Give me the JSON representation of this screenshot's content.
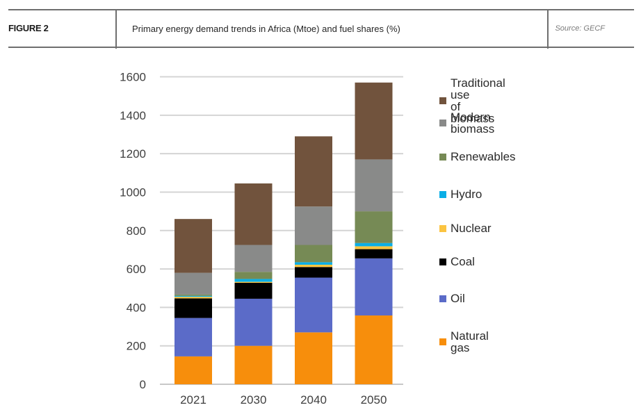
{
  "header": {
    "figure_label": "FIGURE 2",
    "title": "Primary energy demand trends in Africa (Mtoe) and fuel shares (%)",
    "source": "Source: GECF"
  },
  "chart_data": {
    "type": "bar",
    "stacked": true,
    "title": "Primary energy demand trends in Africa (Mtoe) and fuel shares (%)",
    "xlabel": "",
    "ylabel": "",
    "categories": [
      "2021",
      "2030",
      "2040",
      "2050"
    ],
    "ylim": [
      0,
      1600
    ],
    "yticks": [
      0,
      200,
      400,
      600,
      800,
      1000,
      1200,
      1400,
      1600
    ],
    "grid": true,
    "legend_position": "right",
    "series": [
      {
        "name": "Natural gas",
        "color": "#f78e0c",
        "values": [
          145,
          200,
          270,
          358
        ]
      },
      {
        "name": "Oil",
        "color": "#5b6bc8",
        "values": [
          200,
          245,
          285,
          297
        ]
      },
      {
        "name": "Coal",
        "color": "#000000",
        "values": [
          102,
          83,
          55,
          48
        ]
      },
      {
        "name": "Nuclear",
        "color": "#fbc441",
        "values": [
          8,
          5,
          12,
          15
        ]
      },
      {
        "name": "Hydro",
        "color": "#0aaee6",
        "values": [
          5,
          15,
          13,
          17
        ]
      },
      {
        "name": "Renewables",
        "color": "#768a55",
        "values": [
          7,
          37,
          90,
          165
        ]
      },
      {
        "name": "Modern biomass",
        "color": "#898a89",
        "values": [
          113,
          140,
          200,
          270
        ]
      },
      {
        "name": "Traditional use of biomass",
        "color": "#71533d",
        "values": [
          280,
          320,
          365,
          400
        ]
      }
    ]
  },
  "legend": [
    {
      "label": "Traditional use\nof biomass",
      "color": "#71533d"
    },
    {
      "label": "Modern\nbiomass",
      "color": "#898a89"
    },
    {
      "label": "Renewables",
      "color": "#768a55"
    },
    {
      "label": "Hydro",
      "color": "#0aaee6"
    },
    {
      "label": "Nuclear",
      "color": "#fbc441"
    },
    {
      "label": "Coal",
      "color": "#000000"
    },
    {
      "label": "Oil",
      "color": "#5b6bc8"
    },
    {
      "label": "Natural gas",
      "color": "#f78e0c"
    }
  ]
}
